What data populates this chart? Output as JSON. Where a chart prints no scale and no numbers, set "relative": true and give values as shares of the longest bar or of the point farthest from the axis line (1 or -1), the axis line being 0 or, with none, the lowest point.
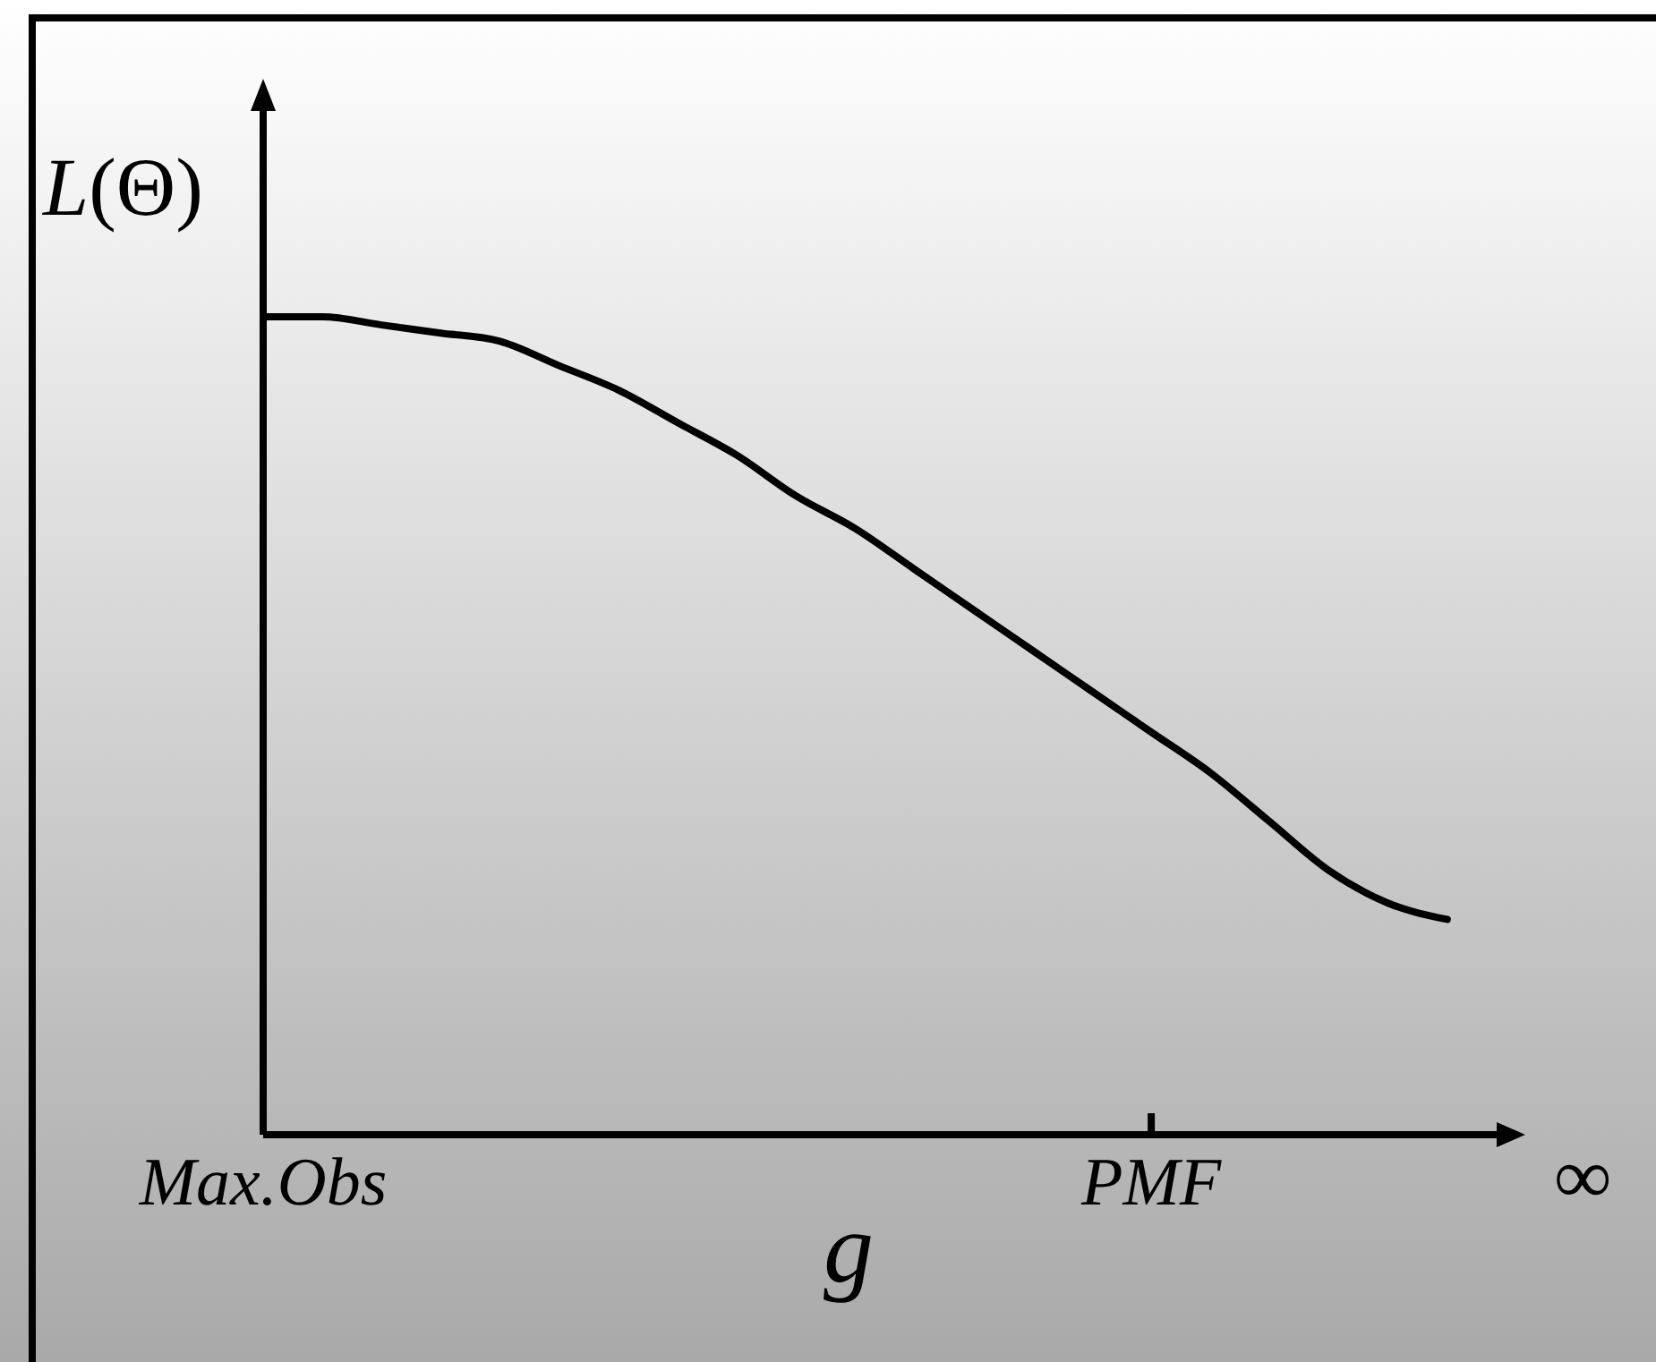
{
  "chart_data": {
    "type": "line",
    "relative": true,
    "xlabel": "g",
    "ylabel": "L(Θ)",
    "categories": [
      "Max.Obs",
      null,
      null,
      null,
      null,
      null,
      null,
      null,
      null,
      null,
      null,
      null,
      null,
      null,
      null,
      "PMF",
      null,
      null,
      null,
      null,
      null,
      null,
      "∞"
    ],
    "series": [
      {
        "color": "#000000",
        "values": [
          1.0,
          1.0,
          0.99,
          0.98,
          0.97,
          0.94,
          0.91,
          0.87,
          0.83,
          0.78,
          0.74,
          0.69,
          0.64,
          0.59,
          0.54,
          0.49,
          0.44,
          0.38,
          0.32,
          0.28,
          0.26,
          null,
          null
        ]
      }
    ],
    "marker": "none",
    "line_style": "solid"
  }
}
